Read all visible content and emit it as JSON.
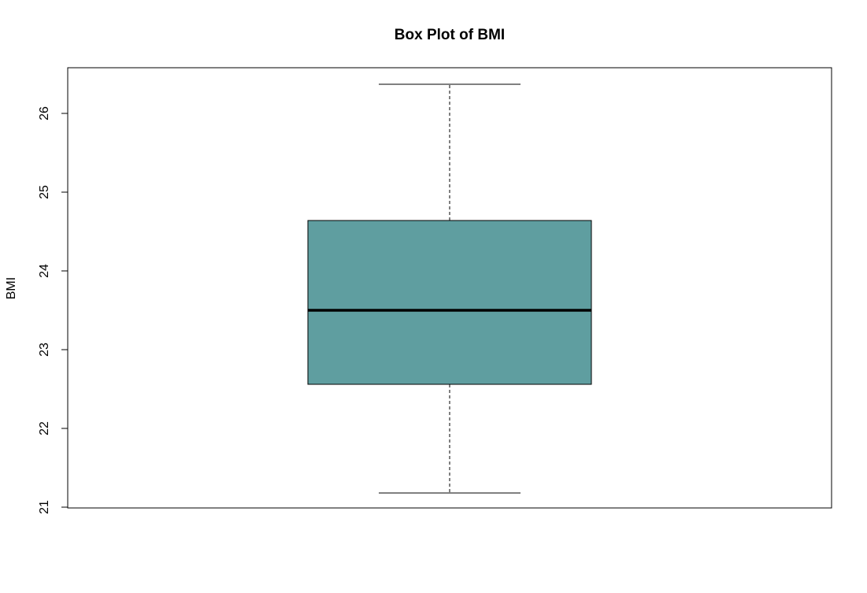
{
  "chart_data": {
    "type": "box",
    "title": "Box Plot of BMI",
    "ylabel": "BMI",
    "xlabel": "",
    "ylim": [
      21,
      26.4
    ],
    "yticks": [
      21,
      22,
      23,
      24,
      25,
      26
    ],
    "ytick_labels": [
      "21",
      "22",
      "23",
      "24",
      "25",
      "26"
    ],
    "box": {
      "min": 21.18,
      "q1": 22.56,
      "median": 23.5,
      "q3": 24.64,
      "max": 26.37
    },
    "box_fill_color": "#5f9ea0",
    "box_border_color": "#000000",
    "median_color": "#000000",
    "grid": false,
    "legend": "none"
  }
}
